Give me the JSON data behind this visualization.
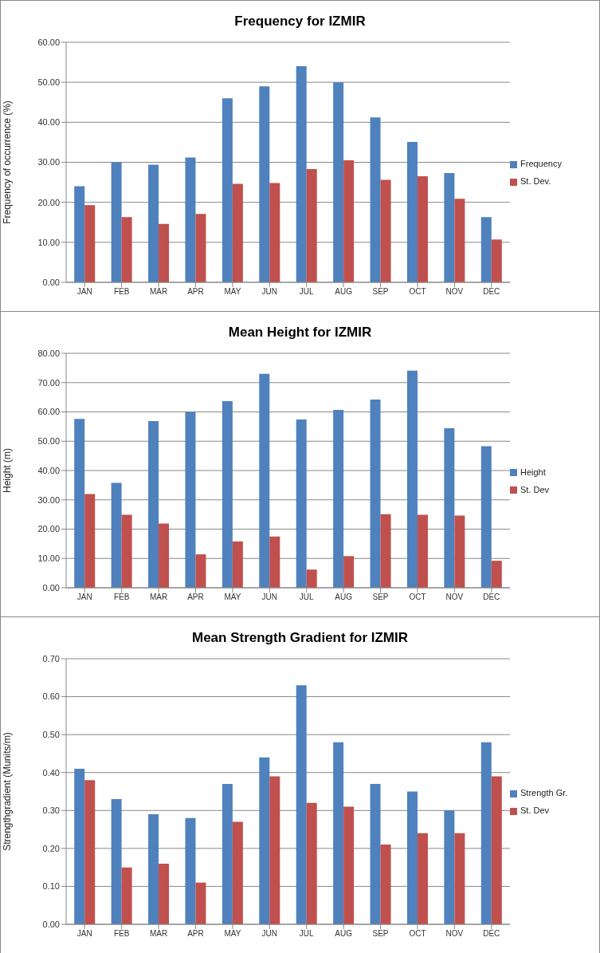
{
  "chart_data": [
    {
      "type": "bar",
      "title": "Frequency for IZMIR",
      "ylabel": "Frequency of occurrence (%)",
      "categories": [
        "JAN",
        "FEB",
        "MAR",
        "APR",
        "MAY",
        "JUN",
        "JUL",
        "AUG",
        "SEP",
        "OCT",
        "NOV",
        "DEC"
      ],
      "series": [
        {
          "name": "Frequency",
          "color": "#4f81bd",
          "values": [
            24.0,
            30.0,
            29.4,
            31.2,
            46.0,
            49.0,
            54.0,
            50.0,
            41.2,
            35.1,
            27.3,
            16.3
          ]
        },
        {
          "name": "St. Dev.",
          "color": "#c0504d",
          "values": [
            19.3,
            16.3,
            14.6,
            17.1,
            24.6,
            24.8,
            28.3,
            30.5,
            25.6,
            26.5,
            20.9,
            10.7
          ]
        }
      ],
      "ylim": [
        0,
        60
      ],
      "yticks": [
        {
          "value": 0,
          "label": "0.00"
        },
        {
          "value": 10,
          "label": "10.00"
        },
        {
          "value": 20,
          "label": "20.00"
        },
        {
          "value": 30,
          "label": "30.00"
        },
        {
          "value": 40,
          "label": "40.00"
        },
        {
          "value": 50,
          "label": "50.00"
        },
        {
          "value": 60,
          "label": "60.00"
        }
      ],
      "grid": "y",
      "legend": "right"
    },
    {
      "type": "bar",
      "title": "Mean Height for IZMIR",
      "ylabel": "Height (m)",
      "categories": [
        "JAN",
        "FEB",
        "MAR",
        "APR",
        "MAY",
        "JUN",
        "JUL",
        "AUG",
        "SEP",
        "OCT",
        "NOV",
        "DEC"
      ],
      "series": [
        {
          "name": "Height",
          "color": "#4f81bd",
          "values": [
            57.6,
            35.8,
            56.9,
            60.0,
            63.7,
            73.0,
            57.4,
            60.7,
            64.2,
            74.1,
            54.4,
            48.3
          ]
        },
        {
          "name": "St. Dev",
          "color": "#c0504d",
          "values": [
            32.0,
            24.9,
            21.9,
            11.4,
            15.8,
            17.5,
            6.2,
            10.8,
            25.1,
            24.9,
            24.6,
            9.2
          ]
        }
      ],
      "ylim": [
        0,
        80
      ],
      "yticks": [
        {
          "value": 0,
          "label": "0.00"
        },
        {
          "value": 10,
          "label": "10.00"
        },
        {
          "value": 20,
          "label": "20.00"
        },
        {
          "value": 30,
          "label": "30.00"
        },
        {
          "value": 40,
          "label": "40.00"
        },
        {
          "value": 50,
          "label": "50.00"
        },
        {
          "value": 60,
          "label": "60.00"
        },
        {
          "value": 70,
          "label": "70.00"
        },
        {
          "value": 80,
          "label": "80.00"
        }
      ],
      "grid": "y",
      "legend": "right"
    },
    {
      "type": "bar",
      "title": "Mean Strength Gradient for IZMIR",
      "ylabel": "Strengthgradient (Munits/m)",
      "categories": [
        "JAN",
        "FEB",
        "MAR",
        "APR",
        "MAY",
        "JUN",
        "JUL",
        "AUG",
        "SEP",
        "OCT",
        "NOV",
        "DEC"
      ],
      "series": [
        {
          "name": "Strength Gr.",
          "color": "#4f81bd",
          "values": [
            0.41,
            0.33,
            0.29,
            0.28,
            0.37,
            0.44,
            0.63,
            0.48,
            0.37,
            0.35,
            0.3,
            0.48
          ]
        },
        {
          "name": "St. Dev",
          "color": "#c0504d",
          "values": [
            0.38,
            0.15,
            0.16,
            0.11,
            0.27,
            0.39,
            0.32,
            0.31,
            0.21,
            0.24,
            0.24,
            0.39
          ]
        }
      ],
      "ylim": [
        0,
        0.7
      ],
      "yticks": [
        {
          "value": 0,
          "label": "0.00"
        },
        {
          "value": 0.1,
          "label": "0.10"
        },
        {
          "value": 0.2,
          "label": "0.20"
        },
        {
          "value": 0.3,
          "label": "0.30"
        },
        {
          "value": 0.4,
          "label": "0.40"
        },
        {
          "value": 0.5,
          "label": "0.50"
        },
        {
          "value": 0.6,
          "label": "0.60"
        },
        {
          "value": 0.7,
          "label": "0.70"
        }
      ],
      "grid": "y",
      "legend": "right"
    }
  ]
}
